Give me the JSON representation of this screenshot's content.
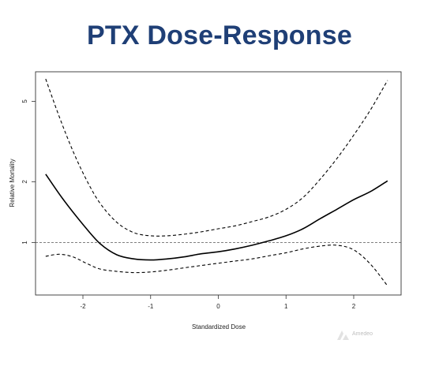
{
  "slide": {
    "title": "PTX Dose-Response",
    "logo_icon": "watermark-logo-icon",
    "logo_text": "Amedeo"
  },
  "chart_data": {
    "type": "line",
    "title": "PTX Dose-Response",
    "xlabel": "Standardized Dose",
    "ylabel": "Relative Mortality",
    "xlim": [
      -2.7,
      2.7
    ],
    "ylim": [
      0.55,
      7.0
    ],
    "y_scale": "log",
    "x_ticks": [
      -2,
      -1,
      0,
      1,
      2
    ],
    "x_tick_labels": [
      "-2",
      "-1",
      "0",
      "1",
      "2"
    ],
    "y_ticks": [
      1,
      2,
      5
    ],
    "y_tick_labels": [
      "1",
      "2",
      "5"
    ],
    "reference_line": {
      "y": 1,
      "style": "dashed",
      "color": "#555555"
    },
    "grid": false,
    "series": [
      {
        "role": "estimate",
        "style": "solid",
        "color": "#000000",
        "x": [
          -2.55,
          -2.3,
          -2.0,
          -1.75,
          -1.5,
          -1.25,
          -1.0,
          -0.75,
          -0.5,
          -0.25,
          0.0,
          0.25,
          0.5,
          0.75,
          1.0,
          1.25,
          1.5,
          1.75,
          2.0,
          2.25,
          2.5
        ],
        "y": [
          2.18,
          1.65,
          1.23,
          0.99,
          0.87,
          0.83,
          0.82,
          0.83,
          0.85,
          0.88,
          0.9,
          0.93,
          0.97,
          1.02,
          1.08,
          1.17,
          1.31,
          1.46,
          1.63,
          1.79,
          2.02
        ]
      },
      {
        "role": "upper-ci",
        "style": "dashed",
        "color": "#000000",
        "x": [
          -2.55,
          -2.35,
          -2.15,
          -1.95,
          -1.75,
          -1.5,
          -1.25,
          -1.0,
          -0.75,
          -0.5,
          -0.25,
          0.0,
          0.25,
          0.5,
          0.75,
          1.0,
          1.25,
          1.5,
          1.75,
          2.0,
          2.25,
          2.5
        ],
        "y": [
          6.45,
          4.2,
          2.85,
          2.05,
          1.57,
          1.26,
          1.12,
          1.08,
          1.08,
          1.1,
          1.13,
          1.17,
          1.21,
          1.27,
          1.34,
          1.46,
          1.67,
          2.05,
          2.6,
          3.4,
          4.55,
          6.35
        ]
      },
      {
        "role": "lower-ci",
        "style": "dashed",
        "color": "#000000",
        "x": [
          -2.55,
          -2.35,
          -2.15,
          -1.95,
          -1.75,
          -1.5,
          -1.25,
          -1.0,
          -0.75,
          -0.5,
          -0.25,
          0.0,
          0.25,
          0.5,
          0.75,
          1.0,
          1.25,
          1.5,
          1.75,
          2.0,
          2.25,
          2.5
        ],
        "y": [
          0.855,
          0.875,
          0.85,
          0.79,
          0.74,
          0.72,
          0.71,
          0.715,
          0.73,
          0.75,
          0.77,
          0.79,
          0.81,
          0.83,
          0.86,
          0.89,
          0.93,
          0.96,
          0.97,
          0.92,
          0.78,
          0.61
        ]
      }
    ]
  }
}
